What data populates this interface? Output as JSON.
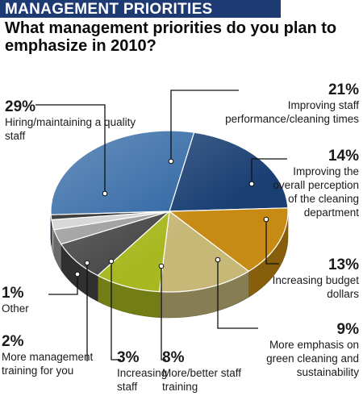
{
  "header": {
    "section_label": "MANAGEMENT PRIORITIES"
  },
  "question": "What management priorities do you plan to emphasize in 2010?",
  "colors": {
    "header_bar": "#1d3a72",
    "improving_staff": "#1a3f73",
    "improving_perception": "#c78a12",
    "increasing_budget": "#c7b878",
    "green_cleaning": "#a8b820",
    "staff_training": "#474747",
    "increasing_staff": "#9c9c9c",
    "management_training": "#d2d2d2",
    "other": "#222222",
    "hiring": "#2f66a3"
  },
  "chart_data": {
    "type": "pie",
    "three_d": true,
    "title": "What management priorities do you plan to emphasize in 2010?",
    "unit": "%",
    "slices": [
      {
        "key": "improving_staff",
        "pct_label": "21%",
        "value": 21,
        "label": "Improving staff performance/cleaning times"
      },
      {
        "key": "improving_perception",
        "pct_label": "14%",
        "value": 14,
        "label": "Improving the overall perception of the cleaning department"
      },
      {
        "key": "increasing_budget",
        "pct_label": "13%",
        "value": 13,
        "label": "Increasing budget dollars"
      },
      {
        "key": "green_cleaning",
        "pct_label": "9%",
        "value": 9,
        "label": "More emphasis on green cleaning and sustainability"
      },
      {
        "key": "staff_training",
        "pct_label": "8%",
        "value": 8,
        "label": "More/better staff training"
      },
      {
        "key": "increasing_staff",
        "pct_label": "3%",
        "value": 3,
        "label": "Increasing staff"
      },
      {
        "key": "management_training",
        "pct_label": "2%",
        "value": 2,
        "label": "More management training for you"
      },
      {
        "key": "other",
        "pct_label": "1%",
        "value": 1,
        "label": "Other"
      },
      {
        "key": "hiring",
        "pct_label": "29%",
        "value": 29,
        "label": "Hiring/maintaining a quality staff"
      }
    ]
  }
}
